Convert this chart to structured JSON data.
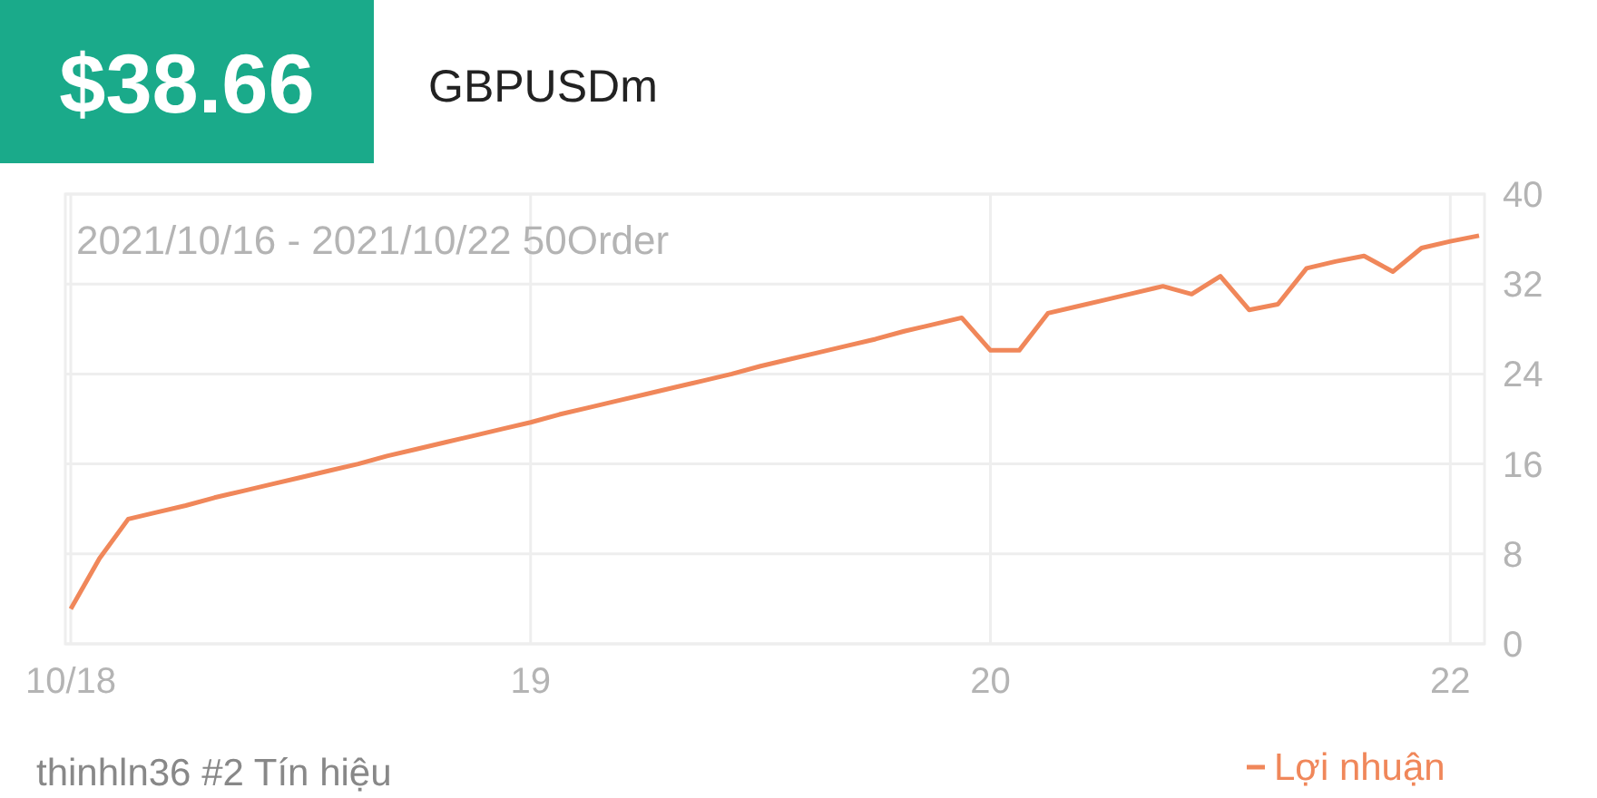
{
  "chart_data": {
    "type": "line",
    "title": "$38.66",
    "subtitle": "GBPUSDm",
    "annotations": [
      "2021/10/16 - 2021/10/22  50Order",
      "thinhln36 #2 Tín hiệu"
    ],
    "categories": [
      "10/18",
      null,
      null,
      null,
      null,
      null,
      null,
      null,
      null,
      null,
      null,
      null,
      null,
      null,
      null,
      null,
      "19",
      null,
      null,
      null,
      null,
      null,
      null,
      null,
      null,
      null,
      null,
      null,
      null,
      null,
      null,
      null,
      "20",
      null,
      null,
      null,
      null,
      null,
      null,
      null,
      null,
      null,
      null,
      null,
      null,
      null,
      null,
      null,
      "22",
      null
    ],
    "series": [
      {
        "name": "Lợi nhuận",
        "color": "#f0875a",
        "values": [
          3.1,
          7.6,
          11.1,
          11.7,
          12.3,
          13.0,
          13.6,
          14.2,
          14.8,
          15.4,
          16.0,
          16.7,
          17.3,
          17.9,
          18.5,
          19.1,
          19.7,
          20.4,
          21.0,
          21.6,
          22.2,
          22.8,
          23.4,
          24.0,
          24.7,
          25.3,
          25.9,
          26.5,
          27.1,
          27.8,
          28.4,
          29.0,
          26.1,
          26.1,
          29.4,
          30.0,
          30.6,
          31.2,
          31.8,
          31.1,
          32.7,
          29.7,
          30.2,
          33.4,
          34.0,
          34.5,
          33.1,
          35.2,
          35.8,
          36.3
        ]
      }
    ],
    "ylim": [
      0,
      40
    ],
    "yticks": [
      0,
      8,
      16,
      24,
      32,
      40
    ],
    "grid": true,
    "legend": "bottom right",
    "line_style": "solid"
  }
}
